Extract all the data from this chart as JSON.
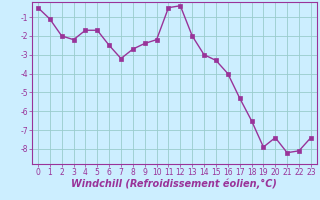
{
  "x": [
    0,
    1,
    2,
    3,
    4,
    5,
    6,
    7,
    8,
    9,
    10,
    11,
    12,
    13,
    14,
    15,
    16,
    17,
    18,
    19,
    20,
    21,
    22,
    23
  ],
  "y": [
    -0.5,
    -1.1,
    -2.0,
    -2.2,
    -1.7,
    -1.7,
    -2.5,
    -3.2,
    -2.7,
    -2.4,
    -2.2,
    -0.5,
    -0.4,
    -2.0,
    -3.0,
    -3.3,
    -4.0,
    -5.3,
    -6.5,
    -7.9,
    -7.4,
    -8.2,
    -8.1,
    -7.4
  ],
  "line_color": "#993399",
  "marker": "s",
  "marker_size": 2.2,
  "linewidth": 1.0,
  "background_color": "#cceeff",
  "grid_color": "#99cccc",
  "xlabel": "Windchill (Refroidissement éolien,°C)",
  "xlabel_fontsize": 7,
  "ylim": [
    -8.8,
    -0.2
  ],
  "xlim": [
    -0.5,
    23.5
  ],
  "yticks": [
    -1,
    -2,
    -3,
    -4,
    -5,
    -6,
    -7,
    -8
  ],
  "xticks": [
    0,
    1,
    2,
    3,
    4,
    5,
    6,
    7,
    8,
    9,
    10,
    11,
    12,
    13,
    14,
    15,
    16,
    17,
    18,
    19,
    20,
    21,
    22,
    23
  ],
  "tick_fontsize": 5.5,
  "tick_color": "#993399",
  "spine_color": "#993399",
  "xlabel_bold": true
}
